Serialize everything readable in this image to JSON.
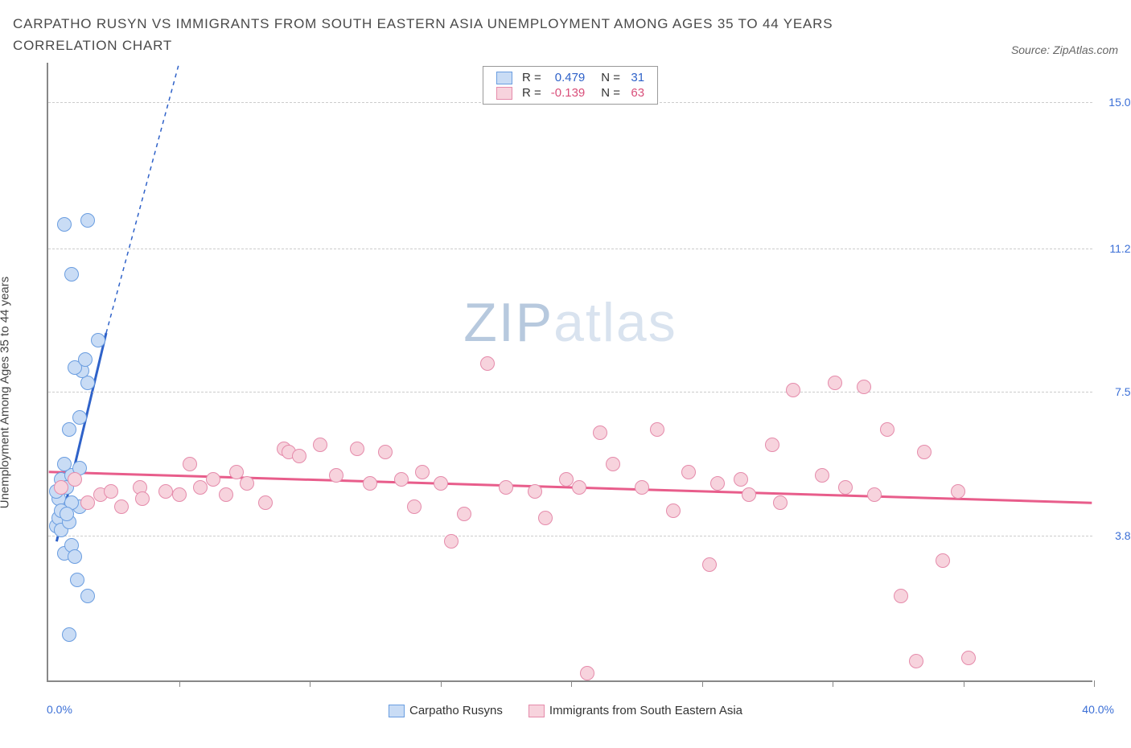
{
  "title": "CARPATHO RUSYN VS IMMIGRANTS FROM SOUTH EASTERN ASIA UNEMPLOYMENT AMONG AGES 35 TO 44 YEARS CORRELATION CHART",
  "source": "Source: ZipAtlas.com",
  "watermark_a": "ZIP",
  "watermark_b": "atlas",
  "ylabel": "Unemployment Among Ages 35 to 44 years",
  "chart": {
    "type": "scatter",
    "background_color": "#ffffff",
    "grid_color": "#cccccc",
    "axis_color": "#888888",
    "xlim": [
      0,
      40
    ],
    "ylim": [
      0,
      16
    ],
    "xticks": [
      5,
      10,
      15,
      20,
      25,
      30,
      35,
      40
    ],
    "x_min_label": "0.0%",
    "x_max_label": "40.0%",
    "yticks": [
      {
        "v": 3.8,
        "label": "3.8%"
      },
      {
        "v": 7.5,
        "label": "7.5%"
      },
      {
        "v": 11.2,
        "label": "11.2%"
      },
      {
        "v": 15.0,
        "label": "15.0%"
      }
    ],
    "series": [
      {
        "name": "Carpatho Rusyns",
        "r": "0.479",
        "n": "31",
        "color_fill": "#c9dcf5",
        "color_stroke": "#6a9de0",
        "value_color": "#2f62c9",
        "trend": {
          "x1": 0.3,
          "y1": 3.6,
          "x2": 2.2,
          "y2": 9.0,
          "ext_x2": 5.0,
          "ext_y2": 16.0,
          "color": "#2f62c9"
        },
        "points": [
          [
            0.3,
            4.0
          ],
          [
            0.4,
            4.2
          ],
          [
            0.6,
            3.3
          ],
          [
            0.5,
            3.9
          ],
          [
            0.8,
            4.1
          ],
          [
            0.9,
            3.5
          ],
          [
            1.0,
            3.2
          ],
          [
            1.1,
            2.6
          ],
          [
            1.5,
            2.2
          ],
          [
            0.8,
            1.2
          ],
          [
            1.2,
            4.5
          ],
          [
            0.5,
            5.2
          ],
          [
            0.7,
            5.0
          ],
          [
            0.9,
            5.3
          ],
          [
            0.6,
            5.6
          ],
          [
            1.2,
            5.5
          ],
          [
            0.8,
            6.5
          ],
          [
            1.2,
            6.8
          ],
          [
            1.5,
            7.7
          ],
          [
            1.3,
            8.0
          ],
          [
            1.0,
            8.1
          ],
          [
            1.4,
            8.3
          ],
          [
            1.9,
            8.8
          ],
          [
            0.9,
            10.5
          ],
          [
            0.6,
            11.8
          ],
          [
            1.5,
            11.9
          ],
          [
            0.4,
            4.7
          ],
          [
            0.3,
            4.9
          ],
          [
            0.9,
            4.6
          ],
          [
            0.5,
            4.4
          ],
          [
            0.7,
            4.3
          ]
        ]
      },
      {
        "name": "Immigrants from South Eastern Asia",
        "r": "-0.139",
        "n": "63",
        "color_fill": "#f7d3dd",
        "color_stroke": "#e58bab",
        "value_color": "#d94f7a",
        "trend": {
          "x1": 0,
          "y1": 5.4,
          "x2": 40,
          "y2": 4.6,
          "color": "#e85d8b"
        },
        "points": [
          [
            0.5,
            5.0
          ],
          [
            1.0,
            5.2
          ],
          [
            1.5,
            4.6
          ],
          [
            2.0,
            4.8
          ],
          [
            2.4,
            4.9
          ],
          [
            2.8,
            4.5
          ],
          [
            3.5,
            5.0
          ],
          [
            3.6,
            4.7
          ],
          [
            4.5,
            4.9
          ],
          [
            5.0,
            4.8
          ],
          [
            5.4,
            5.6
          ],
          [
            5.8,
            5.0
          ],
          [
            6.3,
            5.2
          ],
          [
            6.8,
            4.8
          ],
          [
            7.2,
            5.4
          ],
          [
            7.6,
            5.1
          ],
          [
            8.3,
            4.6
          ],
          [
            9.0,
            6.0
          ],
          [
            9.2,
            5.9
          ],
          [
            9.6,
            5.8
          ],
          [
            10.4,
            6.1
          ],
          [
            11.0,
            5.3
          ],
          [
            11.8,
            6.0
          ],
          [
            12.3,
            5.1
          ],
          [
            12.9,
            5.9
          ],
          [
            13.5,
            5.2
          ],
          [
            14.0,
            4.5
          ],
          [
            14.3,
            5.4
          ],
          [
            15.0,
            5.1
          ],
          [
            15.4,
            3.6
          ],
          [
            15.9,
            4.3
          ],
          [
            16.8,
            8.2
          ],
          [
            17.5,
            5.0
          ],
          [
            18.6,
            4.9
          ],
          [
            19.0,
            4.2
          ],
          [
            19.8,
            5.2
          ],
          [
            20.3,
            5.0
          ],
          [
            20.6,
            0.2
          ],
          [
            21.1,
            6.4
          ],
          [
            21.6,
            5.6
          ],
          [
            22.7,
            5.0
          ],
          [
            23.3,
            6.5
          ],
          [
            23.9,
            4.4
          ],
          [
            24.5,
            5.4
          ],
          [
            25.3,
            3.0
          ],
          [
            25.6,
            5.1
          ],
          [
            26.5,
            5.2
          ],
          [
            26.8,
            4.8
          ],
          [
            27.7,
            6.1
          ],
          [
            28.0,
            4.6
          ],
          [
            28.5,
            7.5
          ],
          [
            29.6,
            5.3
          ],
          [
            30.1,
            7.7
          ],
          [
            30.5,
            5.0
          ],
          [
            31.2,
            7.6
          ],
          [
            31.6,
            4.8
          ],
          [
            32.1,
            6.5
          ],
          [
            33.2,
            0.5
          ],
          [
            33.5,
            5.9
          ],
          [
            34.2,
            3.1
          ],
          [
            35.2,
            0.6
          ],
          [
            32.6,
            2.2
          ],
          [
            34.8,
            4.9
          ]
        ]
      }
    ]
  },
  "legend_top_labels": {
    "R": "R =",
    "N": "N ="
  }
}
